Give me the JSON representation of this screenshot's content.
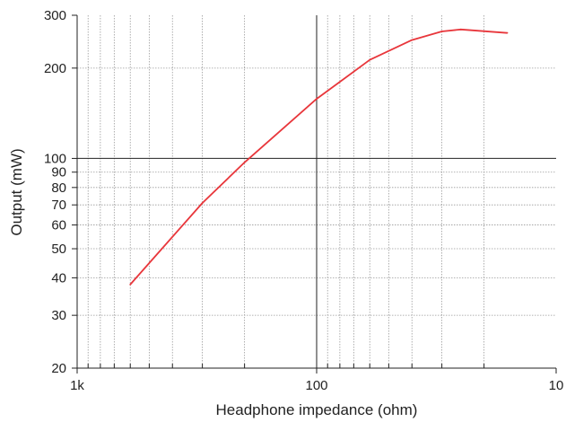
{
  "chart_data": {
    "type": "line",
    "title": "",
    "xlabel": "Headphone impedance (ohm)",
    "ylabel": "Output (mW)",
    "x_scale": "log",
    "x_reversed": true,
    "y_scale": "log",
    "xlim": [
      1000,
      10
    ],
    "ylim": [
      20,
      300
    ],
    "grid": true,
    "legend": "none",
    "x_ticks": [
      {
        "value": 1000,
        "label": "1k"
      },
      {
        "value": 100,
        "label": "100"
      },
      {
        "value": 10,
        "label": "10"
      }
    ],
    "y_ticks": [
      {
        "value": 20,
        "label": "20"
      },
      {
        "value": 30,
        "label": "30"
      },
      {
        "value": 40,
        "label": "40"
      },
      {
        "value": 50,
        "label": "50"
      },
      {
        "value": 60,
        "label": "60"
      },
      {
        "value": 70,
        "label": "70"
      },
      {
        "value": 80,
        "label": "80"
      },
      {
        "value": 90,
        "label": "90"
      },
      {
        "value": 100,
        "label": "100"
      },
      {
        "value": 200,
        "label": "200"
      },
      {
        "value": 300,
        "label": "300"
      }
    ],
    "series": [
      {
        "color": "#e8363b",
        "points": [
          {
            "x": 600,
            "y": 38
          },
          {
            "x": 300,
            "y": 71
          },
          {
            "x": 200,
            "y": 97
          },
          {
            "x": 100,
            "y": 158
          },
          {
            "x": 60,
            "y": 213
          },
          {
            "x": 40,
            "y": 248
          },
          {
            "x": 30,
            "y": 265
          },
          {
            "x": 25,
            "y": 269
          },
          {
            "x": 16,
            "y": 262
          }
        ]
      }
    ]
  }
}
